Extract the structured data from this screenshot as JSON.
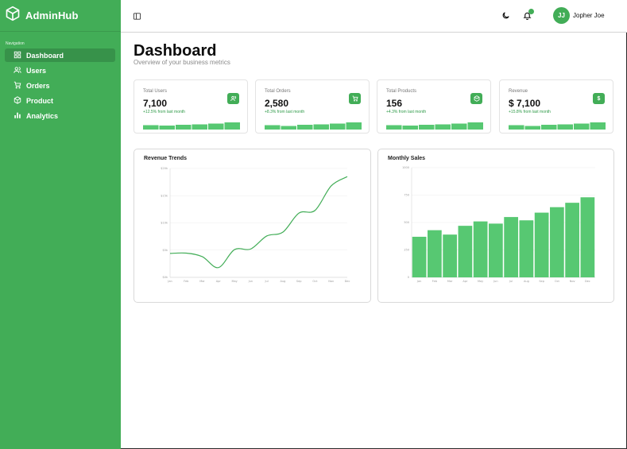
{
  "app": {
    "brand": "AdminHub",
    "brand_icon": "box-icon",
    "accent": "#42ad57"
  },
  "sidebar": {
    "heading": "Navigation",
    "items": [
      {
        "label": "Dashboard",
        "icon": "grid-icon",
        "active": true
      },
      {
        "label": "Users",
        "icon": "users-icon",
        "active": false
      },
      {
        "label": "Orders",
        "icon": "cart-icon",
        "active": false
      },
      {
        "label": "Product",
        "icon": "box-icon",
        "active": false
      },
      {
        "label": "Analytics",
        "icon": "bar-chart-icon",
        "active": false
      }
    ]
  },
  "topbar": {
    "toggle_icon": "sidebar-toggle-icon",
    "theme_icon": "moon-icon",
    "notification_icon": "bell-icon",
    "user": {
      "initials": "JJ",
      "name": "Jopher Joe"
    }
  },
  "page": {
    "title": "Dashboard",
    "subtitle": "Overview of your business metrics"
  },
  "stats": [
    {
      "label": "Total Users",
      "value": "7,100",
      "change": "+12.5% from last month",
      "icon": "users-icon",
      "spark": [
        0.55,
        0.5,
        0.6,
        0.65,
        0.75,
        0.9
      ]
    },
    {
      "label": "Total Orders",
      "value": "2,580",
      "change": "+8.3% from last month",
      "icon": "cart-icon",
      "spark": [
        0.55,
        0.45,
        0.6,
        0.65,
        0.75,
        0.9
      ]
    },
    {
      "label": "Total Products",
      "value": "156",
      "change": "+4.3% from last month",
      "icon": "box-icon",
      "spark": [
        0.55,
        0.5,
        0.6,
        0.65,
        0.75,
        0.9
      ]
    },
    {
      "label": "Revenue",
      "value": "$ 7,100",
      "change": "+15.8% from last month",
      "icon": "dollar-icon",
      "icon_text": "$",
      "spark": [
        0.55,
        0.45,
        0.6,
        0.65,
        0.75,
        0.9
      ]
    }
  ],
  "chart_data": [
    {
      "type": "line",
      "title": "Revenue Trends",
      "x": [
        "Jan",
        "Feb",
        "Mar",
        "Apr",
        "May",
        "Jun",
        "Jul",
        "Aug",
        "Sep",
        "Oct",
        "Nov",
        "Dec"
      ],
      "series": [
        {
          "values": [
            4400,
            4450,
            3800,
            1800,
            5100,
            5200,
            7600,
            8300,
            11800,
            12300,
            16800,
            18500
          ]
        }
      ],
      "y_ticks": [
        "$0k",
        "$5k",
        "$10k",
        "$15k",
        "$20k"
      ],
      "ylim": [
        0,
        20000
      ],
      "grid": true,
      "color": "#42ad57"
    },
    {
      "type": "bar",
      "title": "Monthly Sales",
      "categories": [
        "Jan",
        "Feb",
        "Mar",
        "Apr",
        "May",
        "Jun",
        "Jul",
        "Aug",
        "Sep",
        "Oct",
        "Nov",
        "Dec"
      ],
      "values": [
        370,
        430,
        390,
        470,
        510,
        490,
        550,
        520,
        590,
        640,
        680,
        730
      ],
      "y_ticks": [
        "0",
        "250",
        "500",
        "750",
        "1000"
      ],
      "ylim": [
        0,
        1000
      ],
      "grid": true,
      "color": "#57c872"
    }
  ]
}
